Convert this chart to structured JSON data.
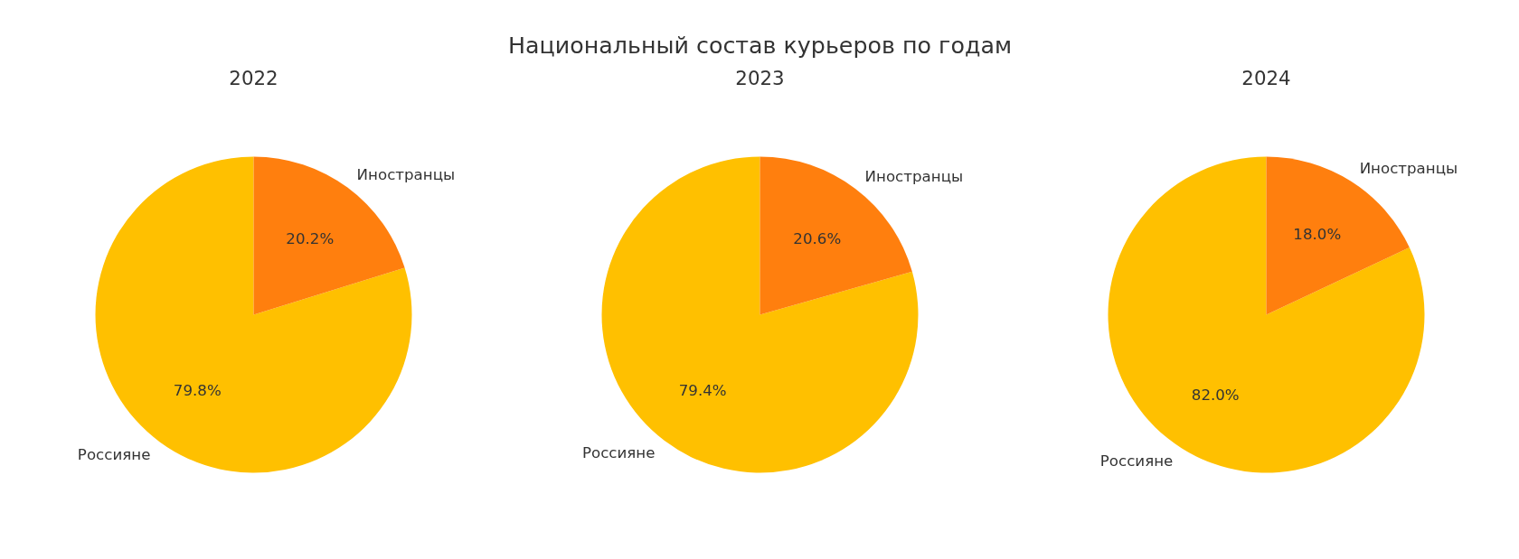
{
  "chart_data": [
    {
      "type": "other",
      "title": "Национальный состав курьеров по годам"
    },
    {
      "type": "pie",
      "title": "2022",
      "categories": [
        "Россияне",
        "Иностранцы"
      ],
      "values": [
        79.8,
        20.2
      ],
      "colors": [
        "#ffc000",
        "#ff7f0e"
      ],
      "value_labels": [
        "79.8%",
        "20.2%"
      ]
    },
    {
      "type": "pie",
      "title": "2023",
      "categories": [
        "Россияне",
        "Иностранцы"
      ],
      "values": [
        79.4,
        20.6
      ],
      "colors": [
        "#ffc000",
        "#ff7f0e"
      ],
      "value_labels": [
        "79.4%",
        "20.6%"
      ]
    },
    {
      "type": "pie",
      "title": "2024",
      "categories": [
        "Россияне",
        "Иностранцы"
      ],
      "values": [
        82.0,
        18.0
      ],
      "colors": [
        "#ffc000",
        "#ff7f0e"
      ],
      "value_labels": [
        "82.0%",
        "18.0%"
      ]
    }
  ]
}
